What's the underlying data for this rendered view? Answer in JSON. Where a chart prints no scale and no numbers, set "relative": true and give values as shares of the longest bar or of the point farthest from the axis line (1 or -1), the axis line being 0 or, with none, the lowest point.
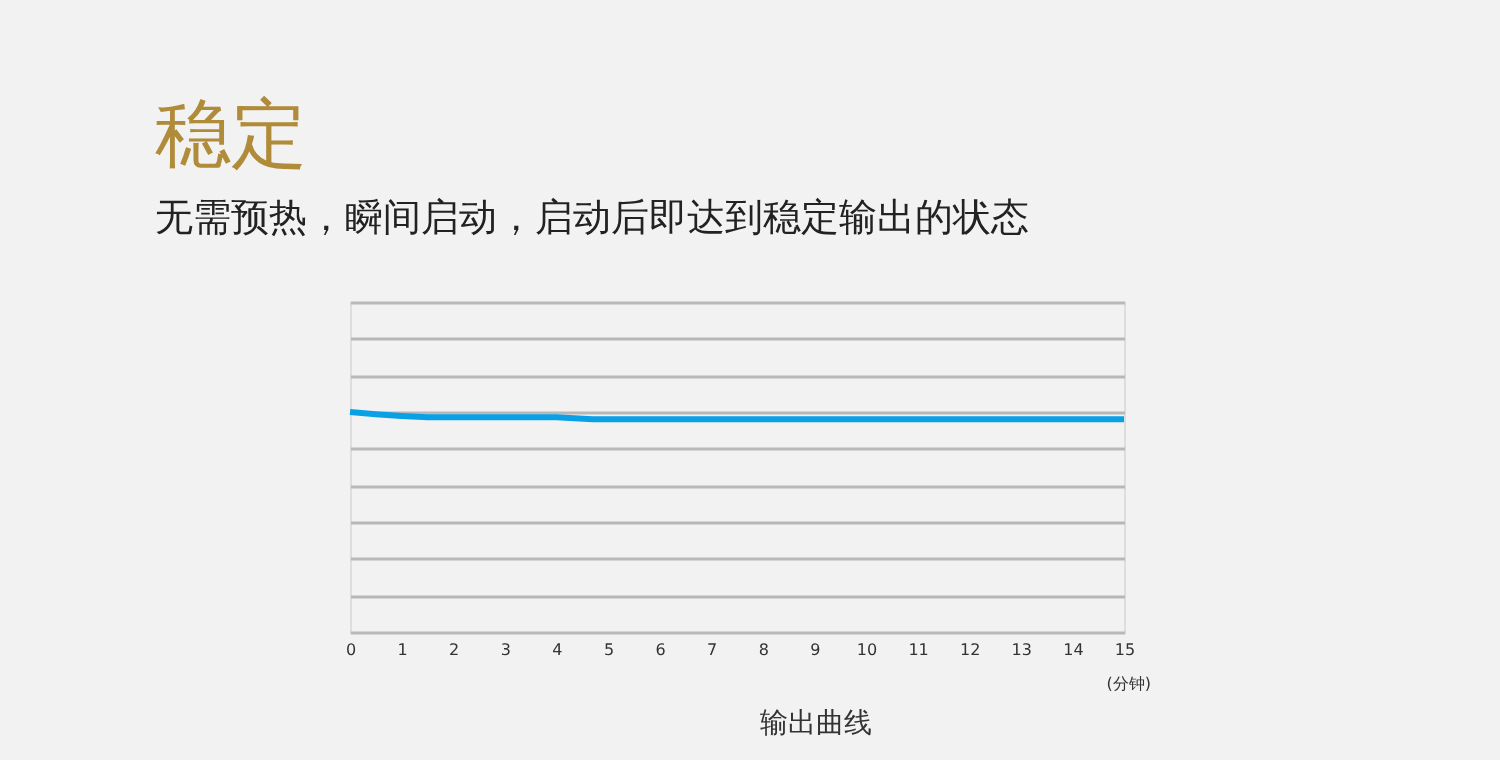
{
  "chart_data": {
    "type": "line",
    "title": "稳定",
    "subtitle": "无需预热，瞬间启动，启动后即达到稳定输出的状态",
    "xlabel": "(分钟)",
    "annotations": [
      "输出曲线"
    ],
    "x": [
      0,
      0.5,
      1,
      1.5,
      2,
      3,
      4,
      4.7,
      6,
      8,
      10,
      12,
      14,
      15
    ],
    "series": [
      {
        "color": "#0aa0e6",
        "values": [
          1,
          0.99,
          0.982,
          0.976,
          0.976,
          0.976,
          0.976,
          0.967,
          0.967,
          0.967,
          0.967,
          0.967,
          0.967,
          0.967
        ]
      }
    ],
    "relative": true,
    "xlim": [
      0,
      15
    ],
    "xticks": [
      0,
      1,
      2,
      3,
      4,
      5,
      6,
      7,
      8,
      9,
      10,
      11,
      12,
      13,
      14,
      15
    ],
    "grid": "y",
    "marker": "none",
    "line_style": "solid"
  }
}
